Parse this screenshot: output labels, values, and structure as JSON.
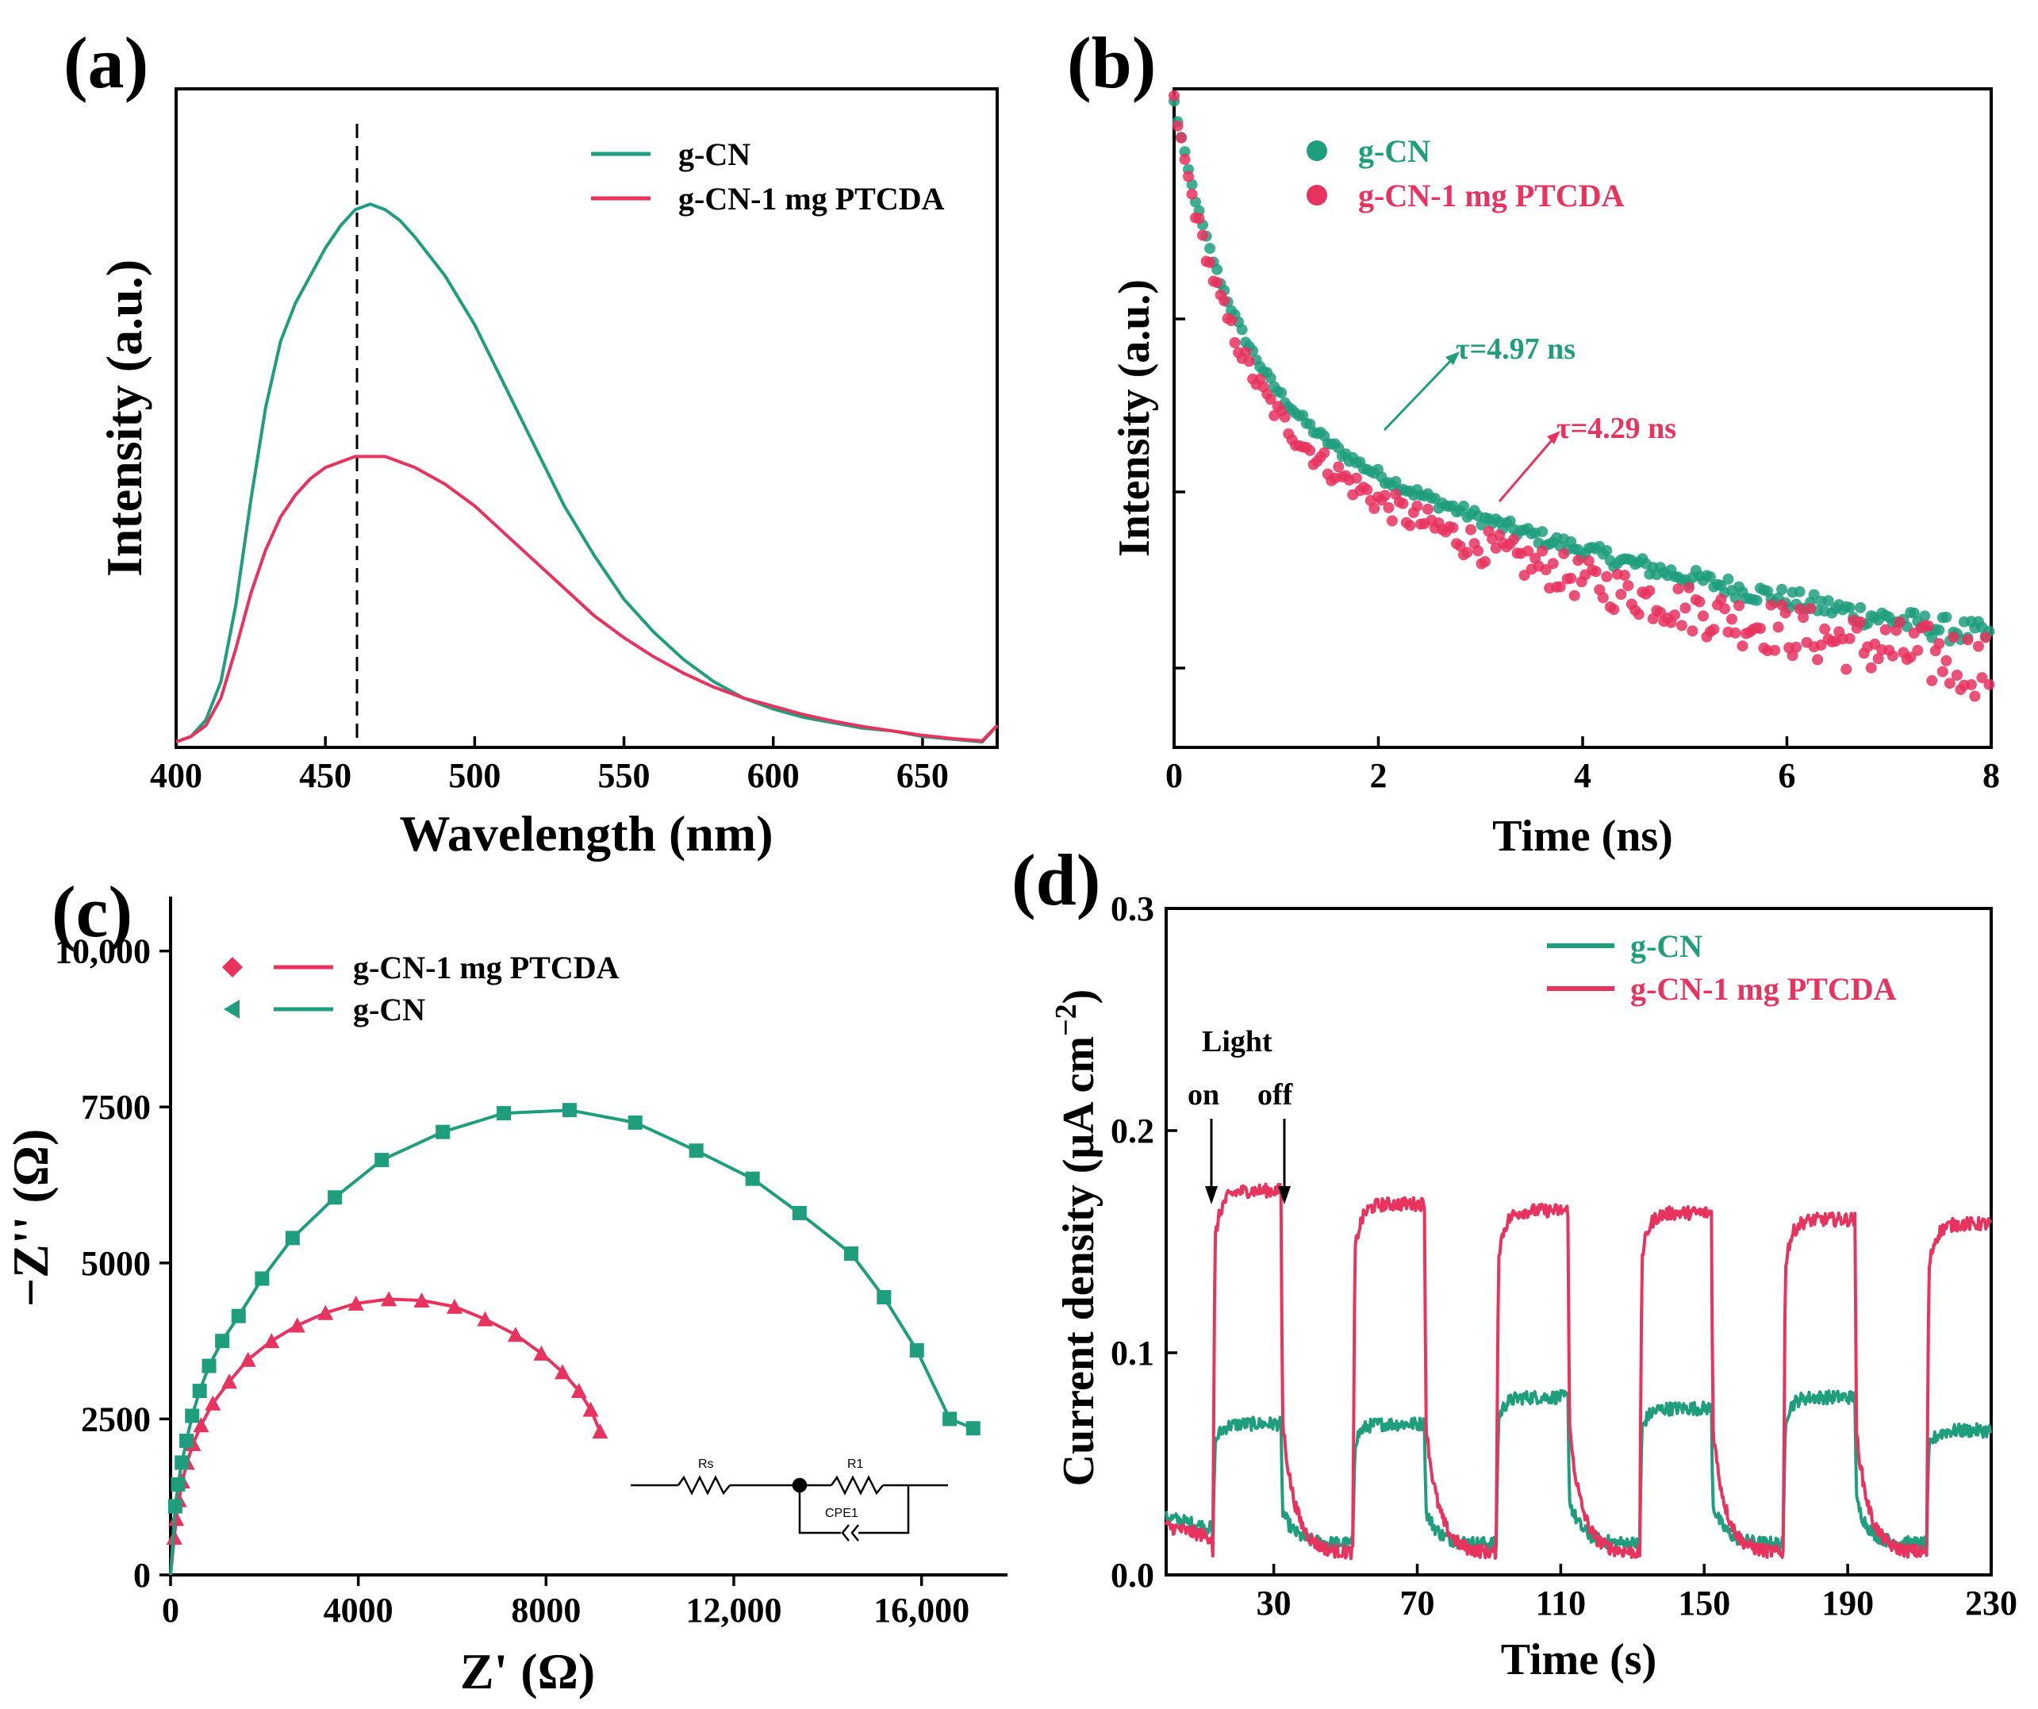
{
  "colors": {
    "gcn": "#1f9e7e",
    "ptcda": "#e8335e",
    "axis": "#000000"
  },
  "chart_data": [
    {
      "panel": "(a)",
      "type": "line",
      "xlabel": "Wavelength (nm)",
      "ylabel": "Intensity (a.u.)",
      "xlim": [
        400,
        675
      ],
      "ylim": [
        0,
        1.2
      ],
      "xticks": [
        400,
        450,
        500,
        550,
        600,
        650
      ],
      "show_yticks": false,
      "legend_position": "top-right",
      "annotations": [
        {
          "type": "dashed-vline",
          "x": 460
        }
      ],
      "series": [
        {
          "name": "g-CN",
          "color_key": "gcn",
          "x": [
            400,
            405,
            410,
            415,
            420,
            425,
            430,
            435,
            440,
            445,
            450,
            455,
            460,
            465,
            470,
            475,
            480,
            490,
            500,
            510,
            520,
            530,
            540,
            550,
            560,
            570,
            580,
            590,
            600,
            610,
            620,
            630,
            640,
            650,
            660,
            670,
            675
          ],
          "y": [
            0.01,
            0.02,
            0.05,
            0.12,
            0.26,
            0.45,
            0.62,
            0.74,
            0.81,
            0.86,
            0.91,
            0.95,
            0.98,
            0.99,
            0.98,
            0.96,
            0.93,
            0.86,
            0.77,
            0.66,
            0.55,
            0.44,
            0.35,
            0.27,
            0.21,
            0.16,
            0.12,
            0.09,
            0.07,
            0.055,
            0.045,
            0.035,
            0.03,
            0.02,
            0.015,
            0.01,
            0.04
          ]
        },
        {
          "name": "g-CN-1 mg PTCDA",
          "color_key": "ptcda",
          "x": [
            400,
            405,
            410,
            415,
            420,
            425,
            430,
            435,
            440,
            445,
            450,
            455,
            460,
            465,
            470,
            475,
            480,
            490,
            500,
            510,
            520,
            530,
            540,
            550,
            560,
            570,
            580,
            590,
            600,
            610,
            620,
            630,
            640,
            650,
            660,
            670,
            675
          ],
          "y": [
            0.01,
            0.02,
            0.04,
            0.09,
            0.18,
            0.28,
            0.36,
            0.42,
            0.46,
            0.49,
            0.51,
            0.52,
            0.53,
            0.53,
            0.53,
            0.52,
            0.51,
            0.48,
            0.44,
            0.39,
            0.34,
            0.29,
            0.24,
            0.2,
            0.165,
            0.135,
            0.11,
            0.09,
            0.075,
            0.06,
            0.048,
            0.038,
            0.03,
            0.022,
            0.016,
            0.012,
            0.04
          ]
        }
      ]
    },
    {
      "panel": "(b)",
      "type": "scatter",
      "xlabel": "Time (ns)",
      "ylabel": "Intensity (a.u.)",
      "xlim": [
        0,
        8
      ],
      "ylim": [
        0,
        1
      ],
      "xticks": [
        0,
        2,
        4,
        6,
        8
      ],
      "show_yticks": false,
      "legend_position": "top-left",
      "series": [
        {
          "name": "g-CN",
          "color_key": "gcn",
          "model": "decay",
          "y0": 0.98,
          "a1": 0.45,
          "t1": 0.6,
          "a2": 0.53,
          "t2": 7.0,
          "noise": 0.015
        },
        {
          "name": "g-CN-1 mg PTCDA",
          "color_key": "ptcda",
          "model": "decay",
          "y0": 0.98,
          "a1": 0.46,
          "t1": 0.55,
          "a2": 0.52,
          "t2": 5.6,
          "noise": 0.04
        }
      ],
      "annotations": [
        {
          "text": "τ=4.97 ns",
          "color_key": "gcn",
          "arrow_from": [
            2.0,
            0.55
          ],
          "arrow_to": [
            2.7,
            0.67
          ]
        },
        {
          "text": "τ=4.29 ns",
          "color_key": "ptcda",
          "arrow_from": [
            3.1,
            0.42
          ],
          "arrow_to": [
            3.7,
            0.54
          ]
        }
      ]
    },
    {
      "panel": "(c)",
      "type": "scatter",
      "xlabel": "Z' (Ω)",
      "ylabel": "−Z'' (Ω)",
      "xlim": [
        0,
        18000
      ],
      "ylim": [
        0,
        11000
      ],
      "xticks": [
        0,
        4000,
        8000,
        12000,
        16000
      ],
      "xtick_labels": [
        "0",
        "4000",
        "8000",
        "12,000",
        "16,000"
      ],
      "yticks": [
        0,
        2500,
        5000,
        7500,
        10000
      ],
      "ytick_labels": [
        "0",
        "2500",
        "5000",
        "7500",
        "10,000"
      ],
      "legend_position": "top-left",
      "series": [
        {
          "name": "g-CN-1 mg PTCDA",
          "color_key": "ptcda",
          "marker": "triangle",
          "x": [
            80,
            120,
            180,
            250,
            350,
            480,
            650,
            900,
            1250,
            1650,
            2150,
            2700,
            3300,
            3950,
            4650,
            5350,
            6050,
            6700,
            7350,
            7900,
            8350,
            8700,
            8950,
            9150
          ],
          "y": [
            600,
            900,
            1200,
            1500,
            1800,
            2100,
            2400,
            2750,
            3100,
            3450,
            3750,
            4000,
            4200,
            4350,
            4420,
            4400,
            4300,
            4100,
            3850,
            3550,
            3250,
            2950,
            2650,
            2300
          ]
        },
        {
          "name": "g-CN",
          "color_key": "gcn",
          "marker": "square",
          "x": [
            100,
            160,
            240,
            340,
            460,
            620,
            820,
            1100,
            1450,
            1950,
            2600,
            3500,
            4500,
            5800,
            7100,
            8500,
            9900,
            11200,
            12400,
            13400,
            14500,
            15200,
            15900,
            16600,
            17100
          ],
          "y": [
            1100,
            1450,
            1800,
            2150,
            2550,
            2950,
            3350,
            3750,
            4150,
            4750,
            5400,
            6050,
            6650,
            7100,
            7400,
            7450,
            7250,
            6800,
            6350,
            5800,
            5150,
            4450,
            3600,
            2500,
            2350
          ]
        }
      ]
    },
    {
      "panel": "(d)",
      "type": "line",
      "xlabel": "Time (s)",
      "ylabel": "Current density (μA cm⁻²)",
      "xlim": [
        0,
        230
      ],
      "ylim": [
        0,
        0.3
      ],
      "xticks": [
        30,
        70,
        110,
        150,
        190,
        230
      ],
      "yticks": [
        0.0,
        0.1,
        0.2,
        0.3
      ],
      "ytick_labels": [
        "0.0",
        "0.1",
        "0.2",
        "0.3"
      ],
      "legend_position": "top-right",
      "light_on_times": [
        13,
        52,
        92,
        132,
        172,
        212
      ],
      "light_off_times": [
        32,
        72,
        112,
        152,
        192
      ],
      "series": [
        {
          "name": "g-CN",
          "color_key": "gcn",
          "on_level": [
            0.068,
            0.068,
            0.08,
            0.075,
            0.08,
            0.065
          ],
          "dark_level": 0.014
        },
        {
          "name": "g-CN-1 mg PTCDA",
          "color_key": "ptcda",
          "on_level": [
            0.173,
            0.167,
            0.164,
            0.163,
            0.16,
            0.158
          ],
          "dark_level": 0.01
        }
      ],
      "annotations": [
        {
          "text": "Light"
        },
        {
          "text": "on"
        },
        {
          "text": "off"
        }
      ]
    }
  ],
  "panels": {
    "a": {
      "label": "(a)",
      "xlabel": "Wavelength (nm)",
      "ylabel": "Intensity (a.u.)",
      "xtick_labels": [
        "400",
        "450",
        "500",
        "550",
        "600",
        "650"
      ],
      "legend": [
        "g-CN",
        "g-CN-1 mg PTCDA"
      ]
    },
    "b": {
      "label": "(b)",
      "xlabel": "Time (ns)",
      "ylabel": "Intensity (a.u.)",
      "xtick_labels": [
        "0",
        "2",
        "4",
        "6",
        "8"
      ],
      "legend": [
        "g-CN",
        "g-CN-1 mg PTCDA"
      ],
      "tau_gcn": "τ=4.97 ns",
      "tau_ptcda": "τ=4.29 ns"
    },
    "c": {
      "label": "(c)",
      "xlabel": "Z' (Ω)",
      "ylabel": "−Z'' (Ω)",
      "xtick_labels": [
        "0",
        "4000",
        "8000",
        "12,000",
        "16,000"
      ],
      "ytick_labels": [
        "0",
        "2500",
        "5000",
        "7500",
        "10,000"
      ],
      "legend": [
        "g-CN-1 mg PTCDA",
        "g-CN"
      ],
      "circuit": {
        "rs": "Rs",
        "r1": "R1",
        "cpe": "CPE1"
      }
    },
    "d": {
      "label": "(d)",
      "xlabel": "Time (s)",
      "ylabel": "Current density (μA cm⁻²)",
      "ylabel_main": "Current density (μA cm",
      "ylabel_sup": "−2",
      "ylabel_close": ")",
      "xtick_labels": [
        "30",
        "70",
        "110",
        "150",
        "190",
        "230"
      ],
      "ytick_labels": [
        "0.0",
        "0.1",
        "0.2",
        "0.3"
      ],
      "legend": [
        "g-CN",
        "g-CN-1 mg PTCDA"
      ],
      "light": "Light",
      "on": "on",
      "off": "off"
    }
  }
}
